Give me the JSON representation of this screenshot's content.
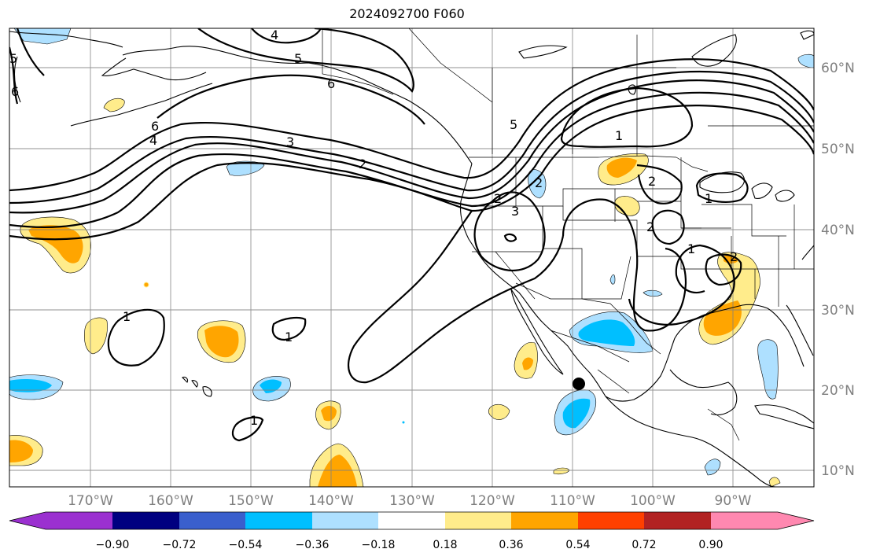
{
  "title": "2024092700 F060",
  "map": {
    "lat_labels": [
      "60°N",
      "50°N",
      "40°N",
      "30°N",
      "20°N",
      "10°N"
    ],
    "lon_labels": [
      "170°W",
      "160°W",
      "150°W",
      "140°W",
      "130°W",
      "120°W",
      "110°W",
      "100°W",
      "90°W"
    ],
    "contour_labels": [
      "4",
      "5",
      "6",
      "6",
      "5",
      "3",
      "2",
      "6",
      "4",
      "5",
      "2",
      "3",
      "2",
      "1",
      "2",
      "2",
      "1",
      "1",
      "1",
      "1",
      "1",
      "2"
    ]
  },
  "colorbar": {
    "tick_labels": [
      "−0.90",
      "−0.72",
      "−0.54",
      "−0.36",
      "−0.18",
      "0.18",
      "0.36",
      "0.54",
      "0.72",
      "0.90"
    ],
    "colors": [
      "#9b30d0",
      "#000080",
      "#3a5fcd",
      "#00bfff",
      "#aee0ff",
      "#ffffff",
      "#ffec8b",
      "#ffa500",
      "#ff4000",
      "#b22222",
      "#ff88b0"
    ]
  },
  "fill_colors": {
    "light_yellow": "#ffec8b",
    "orange": "#ffa500",
    "light_blue": "#aee0ff",
    "deep_sky_blue": "#00bfff"
  }
}
